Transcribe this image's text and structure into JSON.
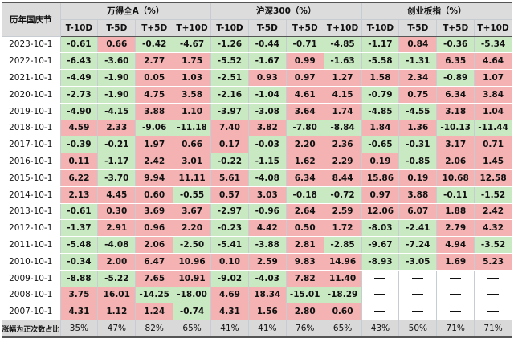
{
  "header": {
    "corner_label": "历年国庆节",
    "groups": [
      "万得全A（%）",
      "沪深300（%）",
      "创业板指（%）"
    ],
    "sub_labels": [
      "T-10D",
      "T-5D",
      "T+5D",
      "T+10D"
    ]
  },
  "rows": [
    {
      "date": "2023-10-1",
      "values": [
        "-0.61",
        "0.66",
        "-0.42",
        "-4.67",
        "-1.26",
        "-0.44",
        "-0.71",
        "-4.85",
        "-1.17",
        "0.84",
        "-0.36",
        "-5.34"
      ]
    },
    {
      "date": "2022-10-1",
      "values": [
        "-6.43",
        "-3.60",
        "2.77",
        "1.75",
        "-5.52",
        "-1.67",
        "0.99",
        "-1.63",
        "-5.58",
        "-1.31",
        "6.35",
        "4.64"
      ]
    },
    {
      "date": "2021-10-1",
      "values": [
        "-4.49",
        "-1.90",
        "0.05",
        "1.03",
        "-2.51",
        "0.93",
        "0.97",
        "1.27",
        "1.58",
        "2.34",
        "-0.89",
        "1.07"
      ]
    },
    {
      "date": "2020-10-1",
      "values": [
        "-2.73",
        "-1.90",
        "4.75",
        "3.58",
        "-2.16",
        "-1.04",
        "4.61",
        "4.15",
        "-0.79",
        "0.75",
        "6.34",
        "3.84"
      ]
    },
    {
      "date": "2019-10-1",
      "values": [
        "-4.90",
        "-4.15",
        "3.88",
        "1.10",
        "-3.97",
        "-3.08",
        "3.64",
        "1.74",
        "-4.85",
        "-4.55",
        "3.18",
        "1.04"
      ]
    },
    {
      "date": "2018-10-1",
      "values": [
        "4.59",
        "2.33",
        "-9.06",
        "-11.18",
        "7.40",
        "3.82",
        "-7.80",
        "-8.84",
        "1.84",
        "1.36",
        "-10.13",
        "-11.44"
      ]
    },
    {
      "date": "2017-10-1",
      "values": [
        "-0.39",
        "-0.21",
        "1.97",
        "0.66",
        "0.17",
        "-0.03",
        "2.20",
        "2.36",
        "-0.65",
        "-0.31",
        "3.17",
        "0.71"
      ]
    },
    {
      "date": "2016-10-1",
      "values": [
        "0.11",
        "-1.17",
        "2.42",
        "3.01",
        "-0.22",
        "-1.15",
        "1.62",
        "2.29",
        "0.19",
        "-0.85",
        "2.06",
        "1.45"
      ]
    },
    {
      "date": "2015-10-1",
      "values": [
        "6.22",
        "-3.70",
        "9.94",
        "11.11",
        "5.61",
        "-4.08",
        "6.34",
        "8.44",
        "15.86",
        "0.19",
        "10.68",
        "12.58"
      ]
    },
    {
      "date": "2014-10-1",
      "values": [
        "2.13",
        "4.45",
        "0.60",
        "-0.55",
        "0.57",
        "3.03",
        "-0.18",
        "-0.72",
        "0.97",
        "3.88",
        "-0.11",
        "-1.52"
      ]
    },
    {
      "date": "2013-10-1",
      "values": [
        "-0.61",
        "0.30",
        "3.69",
        "3.67",
        "-2.97",
        "-0.96",
        "2.64",
        "2.59",
        "12.06",
        "6.07",
        "1.88",
        "2.42"
      ]
    },
    {
      "date": "2012-10-1",
      "values": [
        "-1.37",
        "2.91",
        "0.96",
        "2.20",
        "-0.23",
        "4.42",
        "0.50",
        "1.72",
        "-8.03",
        "-2.41",
        "2.79",
        "4.32"
      ]
    },
    {
      "date": "2011-10-1",
      "values": [
        "-5.48",
        "-4.08",
        "2.06",
        "-2.50",
        "-5.41",
        "-3.88",
        "2.81",
        "-2.85",
        "-9.67",
        "-7.24",
        "4.94",
        "-3.52"
      ]
    },
    {
      "date": "2010-10-1",
      "values": [
        "-0.34",
        "2.00",
        "6.47",
        "10.96",
        "0.10",
        "2.59",
        "9.83",
        "14.96",
        "-8.93",
        "-3.05",
        "1.69",
        "5.23"
      ]
    },
    {
      "date": "2009-10-1",
      "values": [
        "-8.88",
        "-5.22",
        "7.65",
        "10.91",
        "-9.02",
        "-4.03",
        "7.82",
        "11.40",
        "",
        "",
        "",
        ""
      ]
    },
    {
      "date": "2008-10-1",
      "values": [
        "3.75",
        "16.01",
        "-14.25",
        "-18.00",
        "4.69",
        "18.34",
        "-15.01",
        "-18.29",
        "",
        "",
        "",
        ""
      ]
    },
    {
      "date": "2007-10-1",
      "values": [
        "4.31",
        "1.12",
        "1.24",
        "-0.74",
        "4.31",
        "1.56",
        "2.80",
        "0.60",
        "",
        "",
        "",
        ""
      ]
    }
  ],
  "summary": {
    "label": "涨幅为正次数占比",
    "values": [
      "35%",
      "47%",
      "82%",
      "65%",
      "41%",
      "41%",
      "76%",
      "65%",
      "43%",
      "50%",
      "71%",
      "71%"
    ]
  },
  "colors": {
    "positive_bg": "#f4b2b2",
    "negative_bg": "#c9e9c3",
    "header_bg": "#dcdcdc"
  }
}
